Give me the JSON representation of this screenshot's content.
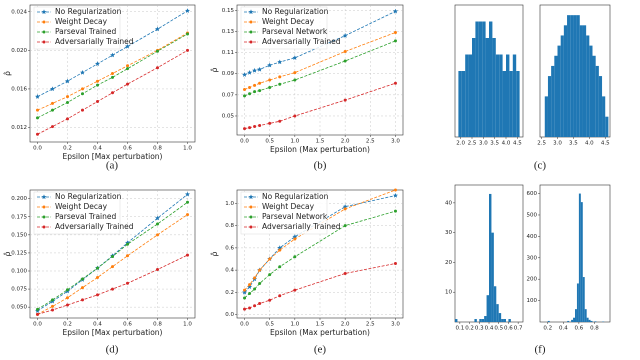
{
  "chart_data": [
    {
      "type": "line",
      "xlabel": "Epsilon [Max perturbation)",
      "ylabel": "ρ̂",
      "legend": "upper left",
      "grid": true,
      "x": [
        0,
        0.1,
        0.2,
        0.3,
        0.4,
        0.5,
        0.6,
        0.8,
        1.0
      ],
      "xlim": [
        -0.05,
        1.05
      ],
      "ylim": [
        0.0105,
        0.0247
      ],
      "xticks": [
        {
          "value": 0,
          "label": "0.0"
        },
        0.2,
        0.4,
        0.6,
        0.8,
        {
          "value": 1,
          "label": "1.0"
        }
      ],
      "yticks": [
        0.012,
        0.016,
        {
          "value": 0.02,
          "label": "0.020"
        },
        0.024
      ],
      "series": [
        {
          "name": "No Regularization",
          "color": "#1f77b4",
          "marker": "star",
          "values": [
            0.0152,
            0.016,
            0.0168,
            0.0177,
            0.0186,
            0.0195,
            0.0204,
            0.0222,
            0.0241
          ]
        },
        {
          "name": "Weight Decay",
          "color": "#ff7f0e",
          "marker": "circle",
          "values": [
            0.0138,
            0.0145,
            0.0152,
            0.016,
            0.0168,
            0.0176,
            0.0184,
            0.02,
            0.0218
          ]
        },
        {
          "name": "Parseval Trained",
          "color": "#2ca02c",
          "marker": "circle",
          "values": [
            0.013,
            0.0138,
            0.0146,
            0.0155,
            0.0164,
            0.0172,
            0.0181,
            0.0199,
            0.0217
          ]
        },
        {
          "name": "Adversarially Trained",
          "color": "#d62728",
          "marker": "circle",
          "values": [
            0.0113,
            0.0121,
            0.0129,
            0.0138,
            0.0147,
            0.0156,
            0.0165,
            0.0182,
            0.02
          ]
        }
      ]
    },
    {
      "type": "line",
      "xlabel": "Epsilon (Max perturbation)",
      "ylabel": "ρ̂",
      "legend": "upper left",
      "grid": true,
      "x": [
        0,
        0.1,
        0.2,
        0.3,
        0.5,
        0.7,
        1.0,
        2.0,
        3.0
      ],
      "xlim": [
        -0.15,
        3.15
      ],
      "ylim": [
        0.032,
        0.155
      ],
      "xticks": [
        {
          "value": 0,
          "label": "0.0"
        },
        0.5,
        {
          "value": 1,
          "label": "1.0"
        },
        1.5,
        {
          "value": 2,
          "label": "2.0"
        },
        2.5,
        {
          "value": 3,
          "label": "3.0"
        }
      ],
      "yticks": [
        0.05,
        0.07,
        0.09,
        0.11,
        0.13,
        0.15
      ],
      "series": [
        {
          "name": "No Regularization",
          "color": "#1f77b4",
          "marker": "star",
          "values": [
            0.089,
            0.091,
            0.093,
            0.094,
            0.098,
            0.101,
            0.105,
            0.126,
            0.149
          ]
        },
        {
          "name": "Weight Decay",
          "color": "#ff7f0e",
          "marker": "circle",
          "values": [
            0.075,
            0.077,
            0.079,
            0.081,
            0.084,
            0.087,
            0.091,
            0.111,
            0.129
          ]
        },
        {
          "name": "Parseval Network",
          "color": "#2ca02c",
          "marker": "circle",
          "values": [
            0.069,
            0.071,
            0.073,
            0.074,
            0.077,
            0.08,
            0.084,
            0.102,
            0.121
          ]
        },
        {
          "name": "Adversarially Trained",
          "color": "#d62728",
          "marker": "circle",
          "values": [
            0.038,
            0.039,
            0.04,
            0.041,
            0.043,
            0.045,
            0.05,
            0.065,
            0.081
          ]
        }
      ]
    },
    {
      "type": "histogram",
      "color": "#1f77b4",
      "grid": false,
      "bins": [
        1.9,
        2.05,
        2.2,
        2.35,
        2.5,
        2.65,
        2.8,
        2.95,
        3.1,
        3.25,
        3.4,
        3.55,
        3.7,
        3.85,
        4.0,
        4.15,
        4.3,
        4.45,
        4.6
      ],
      "values": [
        4,
        4,
        5,
        5,
        6,
        7,
        7,
        7,
        6,
        7,
        6,
        5,
        5,
        4,
        5,
        4,
        5,
        4
      ],
      "xlim": [
        1.75,
        4.75
      ],
      "ylim": [
        0,
        8
      ],
      "xticks": [
        {
          "value": 2,
          "label": "2.0"
        },
        2.5,
        {
          "value": 3,
          "label": "3.0"
        },
        3.5,
        {
          "value": 4,
          "label": "4.0"
        },
        4.5
      ]
    },
    {
      "type": "histogram",
      "color": "#1f77b4",
      "grid": false,
      "bins": [
        2.6,
        2.7,
        2.8,
        2.9,
        3.0,
        3.1,
        3.2,
        3.3,
        3.4,
        3.5,
        3.6,
        3.7,
        3.8,
        3.9,
        4.0,
        4.1,
        4.2,
        4.3,
        4.4,
        4.5,
        4.6
      ],
      "values": [
        4,
        6,
        7,
        8,
        9,
        10,
        11,
        12,
        12,
        12,
        12,
        11,
        11,
        10,
        9,
        8,
        7,
        6,
        4,
        2
      ],
      "xlim": [
        2.45,
        4.65
      ],
      "ylim": [
        0,
        13
      ],
      "xticks": [
        2.5,
        {
          "value": 3,
          "label": "3.0"
        },
        3.5,
        {
          "value": 4,
          "label": "4.0"
        },
        4.5
      ]
    },
    {
      "type": "line",
      "xlabel": "Epsilon [Max perturbation)",
      "ylabel": "ρ̂",
      "legend": "upper left",
      "grid": true,
      "x": [
        0,
        0.1,
        0.2,
        0.3,
        0.4,
        0.5,
        0.6,
        0.8,
        1.0
      ],
      "xlim": [
        -0.05,
        1.05
      ],
      "ylim": [
        0.035,
        0.212
      ],
      "xticks": [
        {
          "value": 0,
          "label": "0.0"
        },
        0.2,
        0.4,
        0.6,
        0.8,
        {
          "value": 1,
          "label": "1.0"
        }
      ],
      "yticks": [
        {
          "value": 0.05,
          "label": "0.050"
        },
        0.075,
        {
          "value": 0.1,
          "label": "0.100"
        },
        0.125,
        {
          "value": 0.15,
          "label": "0.150"
        },
        0.175,
        {
          "value": 0.2,
          "label": "0.200"
        }
      ],
      "series": [
        {
          "name": "No Regularization",
          "color": "#1f77b4",
          "marker": "star",
          "values": [
            0.045,
            0.058,
            0.072,
            0.088,
            0.104,
            0.121,
            0.139,
            0.173,
            0.206
          ]
        },
        {
          "name": "Weight Decay",
          "color": "#ff7f0e",
          "marker": "circle",
          "values": [
            0.04,
            0.051,
            0.063,
            0.077,
            0.091,
            0.106,
            0.121,
            0.15,
            0.178
          ]
        },
        {
          "name": "Parseval Trained",
          "color": "#2ca02c",
          "marker": "circle",
          "values": [
            0.047,
            0.06,
            0.074,
            0.089,
            0.104,
            0.12,
            0.137,
            0.165,
            0.195
          ]
        },
        {
          "name": "Adversarially Trained",
          "color": "#d62728",
          "marker": "circle",
          "values": [
            0.04,
            0.046,
            0.053,
            0.06,
            0.067,
            0.075,
            0.083,
            0.102,
            0.122
          ]
        }
      ]
    },
    {
      "type": "line",
      "xlabel": "Epsilon (Max perturbation)",
      "ylabel": "ρ̂",
      "legend": "upper left",
      "grid": true,
      "x": [
        0,
        0.1,
        0.2,
        0.3,
        0.5,
        0.7,
        1.0,
        2.0,
        3.0
      ],
      "xlim": [
        -0.15,
        3.15
      ],
      "ylim": [
        -0.03,
        1.12
      ],
      "xticks": [
        {
          "value": 0,
          "label": "0.0"
        },
        0.5,
        {
          "value": 1,
          "label": "1.0"
        },
        1.5,
        {
          "value": 2,
          "label": "2.0"
        },
        2.5,
        {
          "value": 3,
          "label": "3.0"
        }
      ],
      "yticks": [
        {
          "value": 0,
          "label": "0.0"
        },
        0.2,
        0.4,
        0.6,
        0.8,
        {
          "value": 1,
          "label": "1.0"
        }
      ],
      "series": [
        {
          "name": "No Regularization",
          "color": "#1f77b4",
          "marker": "star",
          "values": [
            0.2,
            0.25,
            0.32,
            0.4,
            0.5,
            0.6,
            0.7,
            0.97,
            1.07
          ]
        },
        {
          "name": "Weight Decay",
          "color": "#ff7f0e",
          "marker": "circle",
          "values": [
            0.22,
            0.27,
            0.33,
            0.4,
            0.5,
            0.58,
            0.68,
            0.95,
            1.12
          ]
        },
        {
          "name": "Parseval Network",
          "color": "#2ca02c",
          "marker": "circle",
          "values": [
            0.15,
            0.19,
            0.23,
            0.28,
            0.36,
            0.43,
            0.52,
            0.8,
            0.93
          ]
        },
        {
          "name": "Adversarially Trained",
          "color": "#d62728",
          "marker": "circle",
          "values": [
            0.05,
            0.06,
            0.08,
            0.1,
            0.13,
            0.17,
            0.22,
            0.37,
            0.46
          ]
        }
      ]
    },
    {
      "type": "histogram",
      "color": "#1f77b4",
      "grid": false,
      "bins": [
        0.05,
        0.075,
        0.1,
        0.125,
        0.15,
        0.175,
        0.2,
        0.225,
        0.25,
        0.275,
        0.3,
        0.325,
        0.35,
        0.375,
        0.4,
        0.425,
        0.45,
        0.475,
        0.5,
        0.525,
        0.55,
        0.575,
        0.6,
        0.625,
        0.65,
        0.675,
        0.7,
        0.725,
        0.75
      ],
      "values": [
        1,
        0,
        0,
        0,
        0,
        0,
        0,
        0,
        1,
        0,
        1,
        1,
        2,
        9,
        43,
        30,
        12,
        6,
        3,
        1,
        1,
        0,
        1,
        0,
        0,
        0,
        0,
        0
      ],
      "xlim": [
        0.05,
        0.75
      ],
      "ylim": [
        0,
        46
      ],
      "xticks": [
        0.1,
        0.2,
        0.3,
        0.4,
        0.5,
        0.6,
        0.7
      ],
      "yticks": [
        10,
        20,
        30,
        40
      ]
    },
    {
      "type": "histogram",
      "color": "#1f77b4",
      "grid": false,
      "bins": [
        0.1,
        0.125,
        0.15,
        0.175,
        0.2,
        0.225,
        0.25,
        0.275,
        0.3,
        0.325,
        0.35,
        0.375,
        0.4,
        0.425,
        0.45,
        0.475,
        0.5,
        0.525,
        0.55,
        0.575,
        0.6,
        0.625,
        0.65,
        0.675,
        0.7,
        0.725,
        0.75,
        0.775,
        0.8,
        0.825,
        0.85,
        0.875,
        0.9,
        0.925,
        0.95,
        0.975,
        1.0
      ],
      "values": [
        0,
        0,
        0,
        0,
        5,
        0,
        0,
        0,
        0,
        0,
        0,
        0,
        0,
        0,
        5,
        0,
        10,
        20,
        60,
        180,
        600,
        560,
        210,
        60,
        20,
        10,
        5,
        0,
        3,
        0,
        0,
        0,
        2,
        0,
        0,
        0
      ],
      "xlim": [
        0.1,
        1.0
      ],
      "ylim": [
        0,
        640
      ],
      "xticks": [
        0.2,
        0.4,
        0.6,
        0.8
      ],
      "yticks": [
        100,
        200,
        300,
        400,
        500,
        600
      ]
    }
  ],
  "captions": [
    "(a)",
    "(b)",
    "(c)",
    "(d)",
    "(e)",
    "(f)"
  ]
}
